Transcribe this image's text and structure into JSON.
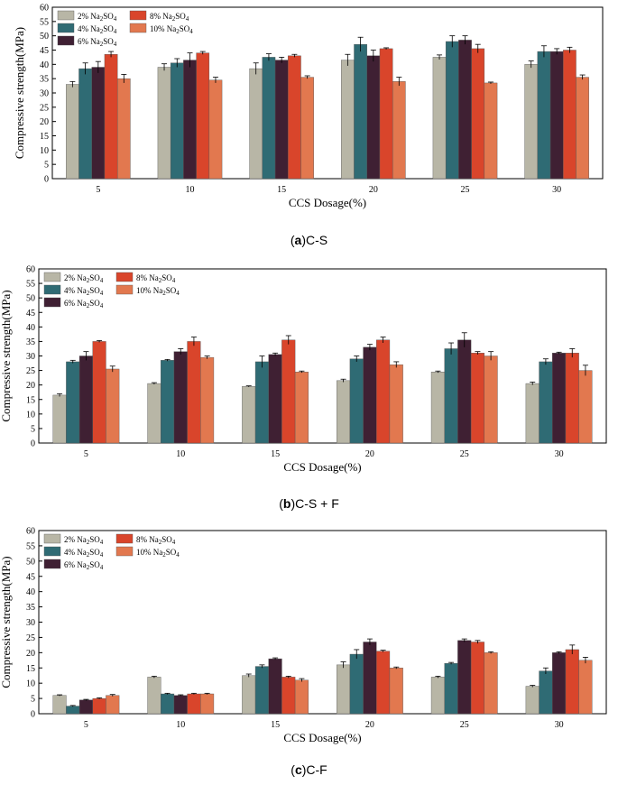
{
  "colors": {
    "s2": "#b8b6a6",
    "s4": "#2f6b74",
    "s6": "#3f2033",
    "s8": "#d9452b",
    "s10": "#e2784f"
  },
  "chart_data": [
    {
      "id": "a",
      "type": "bar",
      "caption_letter": "a",
      "caption_text": "C-S",
      "xlabel": "CCS Dosage(%)",
      "ylabel": "Compressive strength(MPa)",
      "ylim": [
        0,
        60
      ],
      "yticks": [
        "0",
        "5",
        "10",
        "15",
        "20",
        "25",
        "30",
        "35",
        "40",
        "45",
        "50",
        "55",
        "60"
      ],
      "categories": [
        "5",
        "10",
        "15",
        "20",
        "25",
        "30"
      ],
      "legend_placement": "top-left",
      "series": [
        {
          "name": "2% Na2SO4",
          "key": "s2",
          "values": [
            33,
            39,
            38.5,
            41.5,
            42.5,
            40
          ],
          "errors": [
            1,
            1.2,
            2,
            2,
            0.8,
            1.2
          ]
        },
        {
          "name": "4% Na2SO4",
          "key": "s4",
          "values": [
            38.5,
            40.5,
            42.5,
            47,
            48,
            44.5
          ],
          "errors": [
            2,
            1.5,
            1.2,
            2.5,
            2,
            2
          ]
        },
        {
          "name": "6% Na2SO4",
          "key": "s6",
          "values": [
            39,
            41.5,
            41.5,
            43,
            48.5,
            44.5
          ],
          "errors": [
            2,
            2.5,
            1,
            2,
            1.5,
            1
          ]
        },
        {
          "name": "8% Na2SO4",
          "key": "s8",
          "values": [
            43.5,
            44,
            43,
            45.5,
            45.5,
            45
          ],
          "errors": [
            1,
            0.5,
            0.5,
            0.3,
            1.5,
            1
          ]
        },
        {
          "name": "10% Na2SO4",
          "key": "s10",
          "values": [
            35,
            34.5,
            35.5,
            34,
            33.5,
            35.5
          ],
          "errors": [
            1.5,
            1,
            0.5,
            1.5,
            0.3,
            0.8
          ]
        }
      ]
    },
    {
      "id": "b",
      "type": "bar",
      "caption_letter": "b",
      "caption_text": "C-S + F",
      "xlabel": "CCS Dosage(%)",
      "ylabel": "Compressive strength(MPa)",
      "ylim": [
        0,
        60
      ],
      "yticks": [
        "0",
        "5",
        "10",
        "15",
        "20",
        "25",
        "30",
        "35",
        "40",
        "45",
        "50",
        "55",
        "60"
      ],
      "categories": [
        "5",
        "10",
        "15",
        "20",
        "25",
        "30"
      ],
      "legend_placement": "top-left",
      "series": [
        {
          "name": "2% Na2SO4",
          "key": "s2",
          "values": [
            16.5,
            20.5,
            19.5,
            21.5,
            24.5,
            20.5
          ],
          "errors": [
            0.5,
            0.3,
            0.2,
            0.5,
            0.3,
            0.5
          ]
        },
        {
          "name": "4% Na2SO4",
          "key": "s4",
          "values": [
            28,
            28.5,
            28,
            29,
            32.5,
            28
          ],
          "errors": [
            0.5,
            0.3,
            2,
            1,
            2,
            1
          ]
        },
        {
          "name": "6% Na2SO4",
          "key": "s6",
          "values": [
            30,
            31.5,
            30.5,
            33,
            35.5,
            31
          ],
          "errors": [
            1.5,
            1,
            0.5,
            1,
            2.5,
            0.3
          ]
        },
        {
          "name": "8% Na2SO4",
          "key": "s8",
          "values": [
            35,
            35,
            35.5,
            35.5,
            31,
            31
          ],
          "errors": [
            0.3,
            1.5,
            1.5,
            1,
            0.5,
            1.5
          ]
        },
        {
          "name": "10% Na2SO4",
          "key": "s10",
          "values": [
            25.5,
            29.5,
            24.5,
            27,
            30,
            25
          ],
          "errors": [
            1,
            0.5,
            0.3,
            1,
            1.5,
            1.8
          ]
        }
      ]
    },
    {
      "id": "c",
      "type": "bar",
      "caption_letter": "c",
      "caption_text": "C-F",
      "xlabel": "CCS Dosage(%)",
      "ylabel": "Compressive strength(MPa)",
      "ylim": [
        0,
        60
      ],
      "yticks": [
        "0",
        "5",
        "10",
        "15",
        "20",
        "25",
        "30",
        "35",
        "40",
        "45",
        "50",
        "55",
        "60"
      ],
      "categories": [
        "5",
        "10",
        "15",
        "20",
        "25",
        "30"
      ],
      "legend_placement": "top-left",
      "series": [
        {
          "name": "2% Na2SO4",
          "key": "s2",
          "values": [
            6,
            12,
            12.5,
            16,
            12,
            9
          ],
          "errors": [
            0.2,
            0.3,
            0.5,
            1,
            0.3,
            0.3
          ]
        },
        {
          "name": "4% Na2SO4",
          "key": "s4",
          "values": [
            2.5,
            6.5,
            15.5,
            19.5,
            16.5,
            14
          ],
          "errors": [
            0.2,
            0.2,
            0.5,
            1.5,
            0.3,
            1
          ]
        },
        {
          "name": "6% Na2SO4",
          "key": "s6",
          "values": [
            4.5,
            6,
            18,
            23.5,
            24,
            20
          ],
          "errors": [
            0.2,
            0.2,
            0.3,
            1,
            0.5,
            0.3
          ]
        },
        {
          "name": "8% Na2SO4",
          "key": "s8",
          "values": [
            5,
            6.5,
            12,
            20.5,
            23.5,
            21
          ],
          "errors": [
            0.2,
            0.2,
            0.3,
            0.3,
            0.5,
            1.5
          ]
        },
        {
          "name": "10% Na2SO4",
          "key": "s10",
          "values": [
            6,
            6.5,
            11,
            15,
            20,
            17.5
          ],
          "errors": [
            0.3,
            0.2,
            0.5,
            0.3,
            0.3,
            1
          ]
        }
      ]
    }
  ]
}
